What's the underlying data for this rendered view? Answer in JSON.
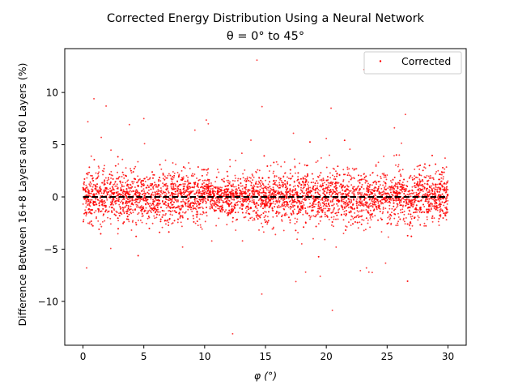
{
  "chart_data": {
    "type": "scatter",
    "title": "Corrected Energy Distribution Using a Neural Network",
    "subtitle": "θ = 0° to 45°",
    "xlabel": "φ (°)",
    "ylabel": "Difference Between 16+8 Layers and 60 Layers (%)",
    "xlim": [
      -1.5,
      31.5
    ],
    "ylim": [
      -14.2,
      14.2
    ],
    "xticks": [
      0,
      5,
      10,
      15,
      20,
      25,
      30
    ],
    "yticks": [
      -10,
      -5,
      0,
      5,
      10
    ],
    "xticklabels": [
      "0",
      "5",
      "10",
      "15",
      "20",
      "25",
      "30"
    ],
    "yticklabels": [
      "−10",
      "−5",
      "0",
      "5",
      "10"
    ],
    "grid": false,
    "legend_position": "top-right",
    "reference_line": {
      "y": 0,
      "style": "dashed",
      "color": "#000000"
    },
    "series": [
      {
        "name": "Corrected",
        "color": "#ff0000",
        "typical_spread_sd_percent": 1.2,
        "x_range": [
          0,
          30
        ],
        "outliers": [
          {
            "x": 14.3,
            "y": 13.1
          },
          {
            "x": 23.1,
            "y": 12.2
          },
          {
            "x": 0.9,
            "y": 9.4
          },
          {
            "x": 1.9,
            "y": 8.7
          },
          {
            "x": 26.5,
            "y": 7.9
          },
          {
            "x": 5.0,
            "y": 7.5
          },
          {
            "x": 0.4,
            "y": 7.2
          },
          {
            "x": 10.3,
            "y": 7.0
          },
          {
            "x": 9.2,
            "y": 6.4
          },
          {
            "x": 17.3,
            "y": 6.1
          },
          {
            "x": 1.5,
            "y": 5.7
          },
          {
            "x": 20.0,
            "y": 5.6
          },
          {
            "x": 0.3,
            "y": -6.8
          },
          {
            "x": 23.3,
            "y": -6.8
          },
          {
            "x": 18.3,
            "y": -7.2
          },
          {
            "x": 23.5,
            "y": -7.2
          },
          {
            "x": 19.5,
            "y": -7.6
          },
          {
            "x": 17.5,
            "y": -8.1
          },
          {
            "x": 14.7,
            "y": -9.3
          },
          {
            "x": 12.3,
            "y": -13.1
          }
        ]
      }
    ]
  }
}
